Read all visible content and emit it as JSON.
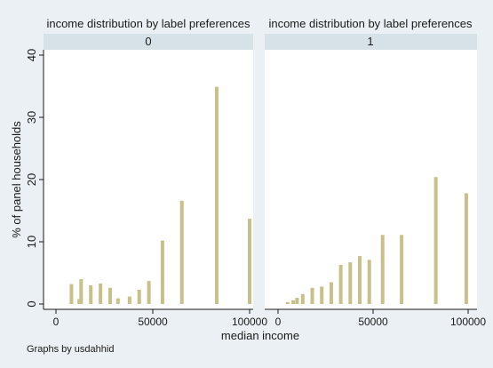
{
  "chart_data": {
    "type": "bar",
    "title": "",
    "xlabel": "median income",
    "ylabel": "% of panel households",
    "note": "Graphs by usdahhid",
    "xlim": [
      0,
      100000
    ],
    "ylim": [
      0,
      40
    ],
    "xticks": [
      0,
      50000,
      100000
    ],
    "yticks": [
      0,
      10,
      20,
      30,
      40
    ],
    "grid": false,
    "bar_color": "#c8c08a",
    "panels": [
      {
        "title": "income distribution by label preferences",
        "label": "0",
        "x": [
          8000,
          12000,
          13000,
          18000,
          23000,
          28000,
          32000,
          38000,
          43000,
          48000,
          55000,
          65000,
          83000,
          100000
        ],
        "values": [
          3.2,
          0.8,
          4.0,
          3.0,
          3.3,
          2.6,
          0.9,
          1.2,
          2.3,
          3.7,
          10.2,
          16.6,
          34.9,
          13.7
        ]
      },
      {
        "title": "income distribution by label preferences",
        "label": "1",
        "x": [
          5000,
          8000,
          10000,
          13000,
          18000,
          23000,
          28000,
          33000,
          38000,
          43000,
          48000,
          55000,
          65000,
          83000,
          99000
        ],
        "values": [
          0.3,
          0.6,
          1.0,
          1.6,
          2.6,
          2.8,
          3.5,
          6.3,
          6.7,
          7.7,
          7.1,
          11.1,
          11.1,
          20.4,
          17.8
        ]
      }
    ]
  }
}
